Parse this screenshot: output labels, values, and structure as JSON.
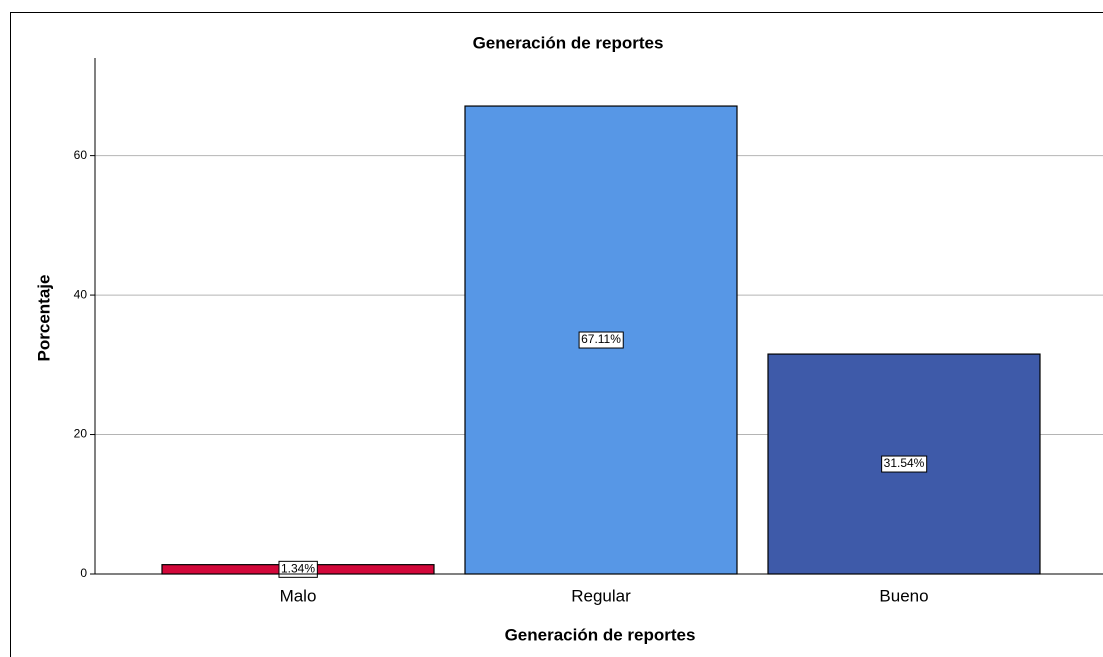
{
  "chart_data": {
    "type": "bar",
    "title": "Generación de reportes",
    "x_label": "Generación de reportes",
    "y_label": "Porcentaje",
    "categories": [
      "Malo",
      "Regular",
      "Bueno"
    ],
    "values": [
      1.34,
      67.11,
      31.54
    ],
    "value_labels": [
      "1.34%",
      "67.11%",
      "31.54%"
    ],
    "colors": [
      "#d2083a",
      "#5797e6",
      "#3e5aa9"
    ],
    "ylim": [
      0,
      74
    ],
    "yticks": [
      0,
      20,
      40,
      60
    ],
    "grid": true
  }
}
